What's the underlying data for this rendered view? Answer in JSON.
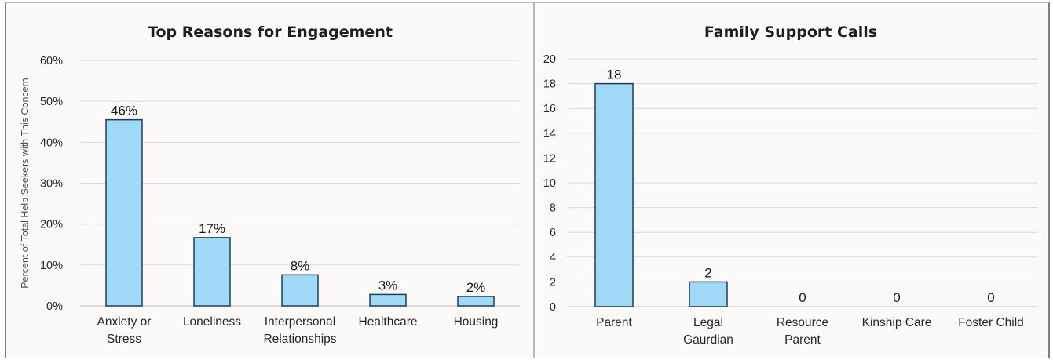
{
  "chart_data": [
    {
      "type": "bar",
      "title": "Top Reasons for Engagement",
      "xlabel": "",
      "ylabel": "Percent of Total Help Seekers with This Concern",
      "categories": [
        [
          "Anxiety or",
          "Stress"
        ],
        [
          "Loneliness"
        ],
        [
          "Interpersonal",
          "Relationships"
        ],
        [
          "Healthcare"
        ],
        [
          "Housing"
        ]
      ],
      "values": [
        45.5,
        16.7,
        7.6,
        2.8,
        2.3
      ],
      "data_labels": [
        "46%",
        "17%",
        "8%",
        "3%",
        "2%"
      ],
      "ylim": [
        0,
        60
      ],
      "yticks": [
        "0%",
        "10%",
        "20%",
        "30%",
        "40%",
        "50%",
        "60%"
      ],
      "grid": true,
      "bar_color": "#9fd9f6",
      "bar_edge_color": "#1f3a60"
    },
    {
      "type": "bar",
      "title": "Family Support Calls",
      "xlabel": "",
      "ylabel": "",
      "categories": [
        [
          "Parent"
        ],
        [
          "Legal",
          "Gaurdian"
        ],
        [
          "Resource",
          "Parent"
        ],
        [
          "Kinship Care"
        ],
        [
          "Foster Child"
        ]
      ],
      "values": [
        18,
        2,
        0,
        0,
        0
      ],
      "data_labels": [
        "18",
        "2",
        "0",
        "0",
        "0"
      ],
      "ylim": [
        0,
        20
      ],
      "yticks": [
        "0",
        "2",
        "4",
        "6",
        "8",
        "10",
        "12",
        "14",
        "16",
        "18",
        "20"
      ],
      "grid": true,
      "bar_color": "#9fd9f6",
      "bar_edge_color": "#1f3a60"
    }
  ]
}
